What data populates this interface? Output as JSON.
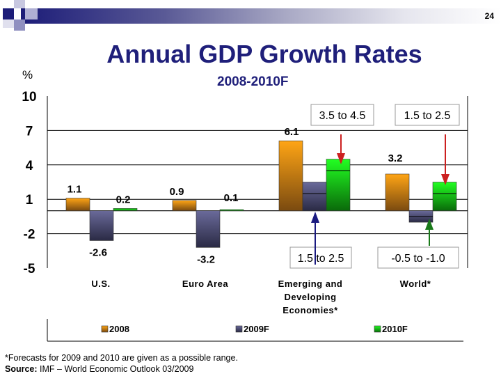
{
  "page_number": "24",
  "colors": {
    "2008": "#f39a14",
    "2009F": "#5c5c88",
    "2010F": "#14d414",
    "title": "#1f1f7a",
    "arrow_red": "#cc2020",
    "arrow_navy": "#1a1a80",
    "arrow_green": "#1a7a1a"
  },
  "chart_data": {
    "type": "bar",
    "title": "Annual GDP Growth Rates",
    "subtitle": "2008-2010F",
    "ylabel": "%",
    "ylim": [
      -5,
      10
    ],
    "yticks": [
      "10",
      "7",
      "4",
      "1",
      "-2",
      "-5"
    ],
    "ytick_values": [
      10,
      7,
      4,
      1,
      -2,
      -5
    ],
    "grid": true,
    "legend_position": "bottom",
    "categories": [
      "U.S.",
      "Euro Area",
      "Emerging and Developing Economies*",
      "World*"
    ],
    "category_lines": [
      [
        "U.S."
      ],
      [
        "Euro Area"
      ],
      [
        "Emerging and",
        "Developing",
        "Economies*"
      ],
      [
        "World*"
      ]
    ],
    "series": [
      {
        "name": "2008",
        "values": [
          1.1,
          0.9,
          6.1,
          3.2
        ],
        "labels": [
          "1.1",
          "0.9",
          "6.1",
          "3.2"
        ]
      },
      {
        "name": "2009F",
        "values": [
          -2.6,
          -3.2,
          2.5,
          -1.0
        ],
        "range_low": [
          null,
          null,
          1.5,
          -0.5
        ],
        "labels": [
          "-2.6",
          "-3.2",
          "",
          ""
        ]
      },
      {
        "name": "2010F",
        "values": [
          0.2,
          0.1,
          4.5,
          2.5
        ],
        "range_low": [
          null,
          null,
          3.5,
          1.5
        ],
        "labels": [
          "0.2",
          "0.1",
          "",
          ""
        ]
      }
    ],
    "annotations": [
      {
        "text": "3.5 to 4.5",
        "target": "Emerging 2010F"
      },
      {
        "text": "1.5 to 2.5",
        "target": "World 2010F"
      },
      {
        "text": "1.5 to 2.5",
        "target": "Emerging 2009F"
      },
      {
        "text": "-0.5 to -1.0",
        "target": "World 2009F"
      }
    ]
  },
  "footnote": "*Forecasts for 2009 and 2010 are given as a possible range.",
  "source_label": "Source:",
  "source_text": " IMF – World Economic Outlook 03/2009"
}
